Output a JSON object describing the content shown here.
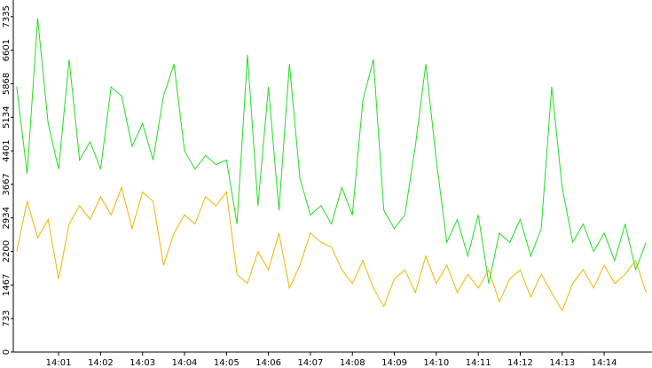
{
  "chart_data": {
    "type": "line",
    "x": [
      0,
      0.25,
      0.5,
      0.75,
      1,
      1.25,
      1.5,
      1.75,
      2,
      2.25,
      2.5,
      2.75,
      3,
      3.25,
      3.5,
      3.75,
      4,
      4.25,
      4.5,
      4.75,
      5,
      5.25,
      5.5,
      5.75,
      6,
      6.25,
      6.5,
      6.75,
      7,
      7.25,
      7.5,
      7.75,
      8,
      8.25,
      8.5,
      8.75,
      9,
      9.25,
      9.5,
      9.75,
      10,
      10.25,
      10.5,
      10.75,
      11,
      11.25,
      11.5,
      11.75,
      12,
      12.25,
      12.5,
      12.75,
      13,
      13.25,
      13.5,
      13.75,
      14,
      14.25,
      14.5,
      14.75,
      15
    ],
    "series": [
      {
        "name": "green",
        "color": "#22dd22",
        "values": [
          5800,
          3900,
          7300,
          5000,
          4000,
          6400,
          4200,
          4600,
          4000,
          5800,
          5600,
          4500,
          5000,
          4200,
          5600,
          6300,
          4400,
          4000,
          4300,
          4100,
          4200,
          2800,
          6500,
          3200,
          5800,
          3100,
          6300,
          3800,
          3000,
          3200,
          2800,
          3600,
          3000,
          5500,
          6400,
          3100,
          2700,
          3000,
          4500,
          6300,
          4200,
          2400,
          2900,
          2100,
          3000,
          1500,
          2600,
          2400,
          2900,
          2100,
          2700,
          5800,
          3600,
          2400,
          2800,
          2200,
          2600,
          2000,
          2800,
          1800,
          2400
        ]
      },
      {
        "name": "orange",
        "color": "#f0b400",
        "values": [
          2200,
          3300,
          2500,
          2900,
          1600,
          2800,
          3200,
          2900,
          3400,
          3000,
          3600,
          2700,
          3500,
          3300,
          1900,
          2600,
          3000,
          2800,
          3400,
          3200,
          3500,
          1700,
          1500,
          2200,
          1800,
          2600,
          1400,
          1900,
          2600,
          2400,
          2300,
          1800,
          1500,
          2000,
          1400,
          1000,
          1600,
          1800,
          1300,
          2100,
          1500,
          1900,
          1300,
          1700,
          1400,
          1800,
          1100,
          1600,
          1800,
          1200,
          1700,
          1300,
          900,
          1500,
          1800,
          1400,
          1900,
          1500,
          1700,
          2000,
          1300
        ]
      }
    ],
    "xlim": [
      -0.08,
      15.14
    ],
    "xticks": [
      {
        "value": 1,
        "label": "14:01"
      },
      {
        "value": 2,
        "label": "14:02"
      },
      {
        "value": 3,
        "label": "14:03"
      },
      {
        "value": 4,
        "label": "14:04"
      },
      {
        "value": 5,
        "label": "14:05"
      },
      {
        "value": 6,
        "label": "14:06"
      },
      {
        "value": 7,
        "label": "14:07"
      },
      {
        "value": 8,
        "label": "14:08"
      },
      {
        "value": 9,
        "label": "14:09"
      },
      {
        "value": 10,
        "label": "14:10"
      },
      {
        "value": 11,
        "label": "14:11"
      },
      {
        "value": 12,
        "label": "14:12"
      },
      {
        "value": 13,
        "label": "14:13"
      },
      {
        "value": 14,
        "label": "14:14"
      }
    ],
    "ylim": [
      0,
      7700
    ],
    "yticks": [
      0,
      733,
      1467,
      2200,
      2934,
      3667,
      4401,
      5134,
      5868,
      6601,
      7335
    ]
  }
}
